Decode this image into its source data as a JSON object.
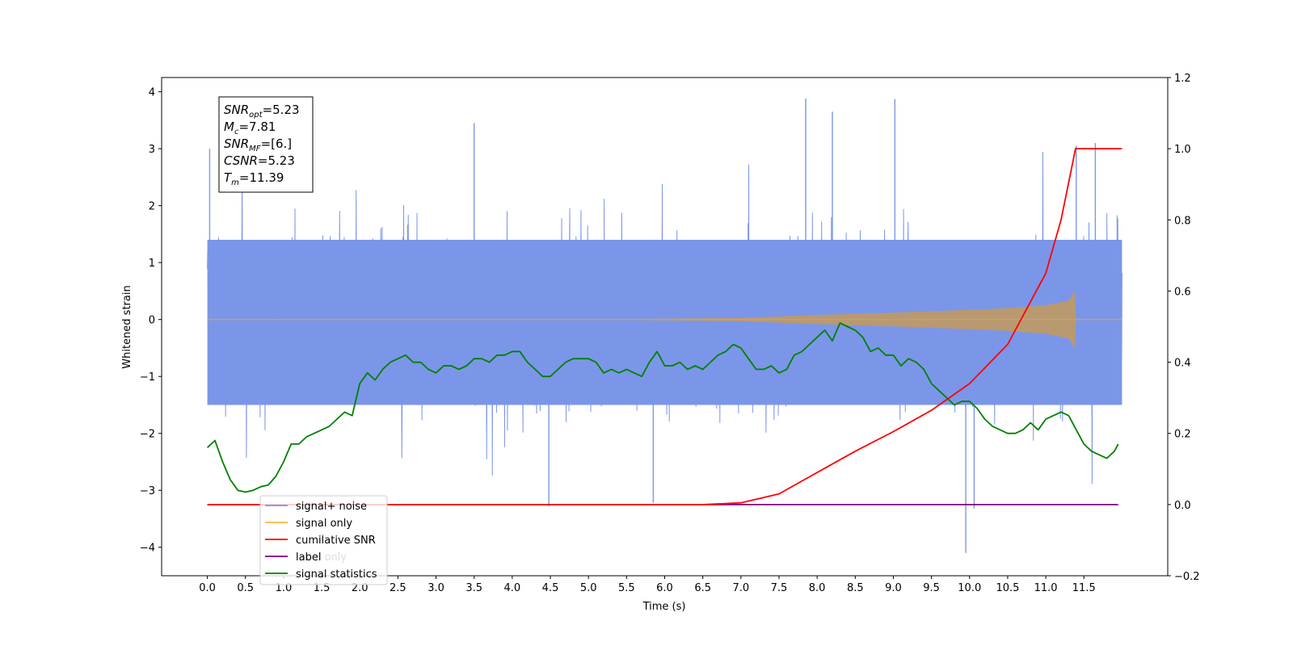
{
  "chart_data": {
    "type": "line",
    "xlabel": "Time (s)",
    "ylabel": "Whitened strain",
    "xlim": [
      -0.6,
      12.6
    ],
    "ylim": [
      -4.5,
      4.25
    ],
    "ylim_right": [
      -0.2,
      1.2
    ],
    "x_ticks": [
      "0.0",
      "0.5",
      "1.0",
      "1.5",
      "2.0",
      "2.5",
      "3.0",
      "3.5",
      "4.0",
      "4.5",
      "5.0",
      "5.5",
      "6.0",
      "6.5",
      "7.0",
      "7.5",
      "8.0",
      "8.5",
      "9.0",
      "9.5",
      "10.0",
      "10.5",
      "11.0",
      "11.5"
    ],
    "y_ticks_left": [
      "4",
      "3",
      "2",
      "1",
      "0",
      "−1",
      "−2",
      "−3",
      "−4"
    ],
    "y_ticks_right": [
      "1.2",
      "1.0",
      "0.8",
      "0.6",
      "0.4",
      "0.2",
      "0.0",
      "−0.2"
    ],
    "annotation": {
      "lines": [
        {
          "sym": "SNR",
          "sub": "opt",
          "value": "=5.23"
        },
        {
          "sym": "M",
          "sub": "c",
          "value": "=7.81"
        },
        {
          "sym": "SNR",
          "sub": "MF",
          "value": "=[6.]"
        },
        {
          "sym": "CSNR",
          "sub": "",
          "value": "=5.23"
        },
        {
          "sym": "T",
          "sub": "m",
          "value": "=11.39"
        }
      ]
    },
    "legend": {
      "position": "lower-left",
      "entries": [
        {
          "label": "signal+ noise",
          "color": "#7b96e8"
        },
        {
          "label": "signal only",
          "color": "#f5b942"
        },
        {
          "label": "cumilative SNR",
          "color": "#ff0000"
        },
        {
          "label": "label",
          "color": "#800080"
        },
        {
          "label": "signal statistics",
          "color": "#008000"
        }
      ],
      "hidden_labels": [
        "label only"
      ]
    },
    "series": [
      {
        "name": "signal+ noise",
        "axis": "left",
        "color": "#7b96e8",
        "x_range": [
          0,
          12.0
        ],
        "band_typical": [
          -1.5,
          1.4
        ],
        "peaks": [
          [
            0.03,
            3.0
          ],
          [
            0.04,
            -1.3
          ],
          [
            3.5,
            3.45
          ],
          [
            4.48,
            -3.28
          ],
          [
            5.85,
            -3.22
          ],
          [
            7.85,
            3.88
          ],
          [
            8.2,
            3.65
          ],
          [
            9.02,
            3.87
          ],
          [
            9.95,
            -4.1
          ],
          [
            10.06,
            -3.32
          ],
          [
            11.4,
            3.05
          ],
          [
            11.65,
            3.1
          ]
        ]
      },
      {
        "name": "signal only",
        "axis": "left",
        "color": "#f5b942",
        "x": [
          0.0,
          5.0,
          7.0,
          8.0,
          9.0,
          10.0,
          10.5,
          11.0,
          11.3,
          11.39,
          11.4,
          12.0
        ],
        "envelope": [
          0.0,
          0.0,
          0.03,
          0.08,
          0.12,
          0.17,
          0.2,
          0.25,
          0.33,
          0.52,
          0.0,
          0.0
        ]
      },
      {
        "name": "cumilative SNR",
        "axis": "right",
        "color": "#ff0000",
        "x": [
          0.0,
          6.5,
          7.0,
          7.5,
          8.0,
          8.5,
          9.0,
          9.5,
          10.0,
          10.5,
          11.0,
          11.2,
          11.39,
          12.0
        ],
        "values": [
          0.0,
          0.0,
          0.005,
          0.03,
          0.09,
          0.15,
          0.205,
          0.265,
          0.34,
          0.45,
          0.65,
          0.8,
          1.0,
          1.0
        ]
      },
      {
        "name": "label",
        "axis": "right",
        "color": "#800080",
        "x": [
          0.0,
          11.95
        ],
        "values": [
          0.0,
          0.0
        ]
      },
      {
        "name": "signal statistics",
        "axis": "right",
        "color": "#008000",
        "x": [
          0.0,
          0.1,
          0.2,
          0.3,
          0.4,
          0.5,
          0.6,
          0.7,
          0.8,
          0.9,
          1.0,
          1.1,
          1.2,
          1.3,
          1.4,
          1.5,
          1.6,
          1.7,
          1.8,
          1.9,
          2.0,
          2.1,
          2.2,
          2.3,
          2.4,
          2.5,
          2.6,
          2.7,
          2.8,
          2.9,
          3.0,
          3.1,
          3.2,
          3.3,
          3.4,
          3.5,
          3.6,
          3.7,
          3.8,
          3.9,
          4.0,
          4.1,
          4.2,
          4.3,
          4.4,
          4.5,
          4.6,
          4.7,
          4.8,
          4.9,
          5.0,
          5.1,
          5.2,
          5.3,
          5.4,
          5.5,
          5.6,
          5.7,
          5.8,
          5.9,
          6.0,
          6.1,
          6.2,
          6.3,
          6.4,
          6.5,
          6.6,
          6.7,
          6.8,
          6.9,
          7.0,
          7.1,
          7.2,
          7.3,
          7.4,
          7.5,
          7.6,
          7.7,
          7.8,
          7.9,
          8.0,
          8.1,
          8.2,
          8.3,
          8.4,
          8.5,
          8.6,
          8.7,
          8.8,
          8.9,
          9.0,
          9.1,
          9.2,
          9.3,
          9.4,
          9.5,
          9.6,
          9.7,
          9.8,
          9.9,
          10.0,
          10.1,
          10.2,
          10.3,
          10.4,
          10.5,
          10.6,
          10.7,
          10.8,
          10.9,
          11.0,
          11.1,
          11.2,
          11.3,
          11.4,
          11.5,
          11.6,
          11.7,
          11.8,
          11.9,
          11.95
        ],
        "values": [
          0.16,
          0.18,
          0.12,
          0.07,
          0.04,
          0.035,
          0.04,
          0.05,
          0.055,
          0.08,
          0.12,
          0.17,
          0.17,
          0.19,
          0.2,
          0.21,
          0.22,
          0.24,
          0.26,
          0.25,
          0.34,
          0.37,
          0.35,
          0.38,
          0.4,
          0.41,
          0.42,
          0.4,
          0.4,
          0.38,
          0.37,
          0.39,
          0.39,
          0.38,
          0.39,
          0.41,
          0.41,
          0.4,
          0.42,
          0.42,
          0.43,
          0.43,
          0.4,
          0.38,
          0.36,
          0.36,
          0.38,
          0.4,
          0.41,
          0.41,
          0.41,
          0.4,
          0.37,
          0.38,
          0.37,
          0.38,
          0.37,
          0.36,
          0.4,
          0.43,
          0.39,
          0.39,
          0.4,
          0.38,
          0.39,
          0.38,
          0.4,
          0.42,
          0.43,
          0.45,
          0.44,
          0.41,
          0.38,
          0.38,
          0.39,
          0.37,
          0.38,
          0.42,
          0.43,
          0.45,
          0.47,
          0.49,
          0.46,
          0.51,
          0.5,
          0.49,
          0.47,
          0.43,
          0.44,
          0.42,
          0.42,
          0.39,
          0.41,
          0.4,
          0.38,
          0.34,
          0.32,
          0.3,
          0.28,
          0.29,
          0.29,
          0.27,
          0.24,
          0.22,
          0.21,
          0.2,
          0.2,
          0.21,
          0.23,
          0.21,
          0.24,
          0.25,
          0.26,
          0.25,
          0.21,
          0.17,
          0.15,
          0.14,
          0.13,
          0.15,
          0.17
        ]
      }
    ]
  }
}
